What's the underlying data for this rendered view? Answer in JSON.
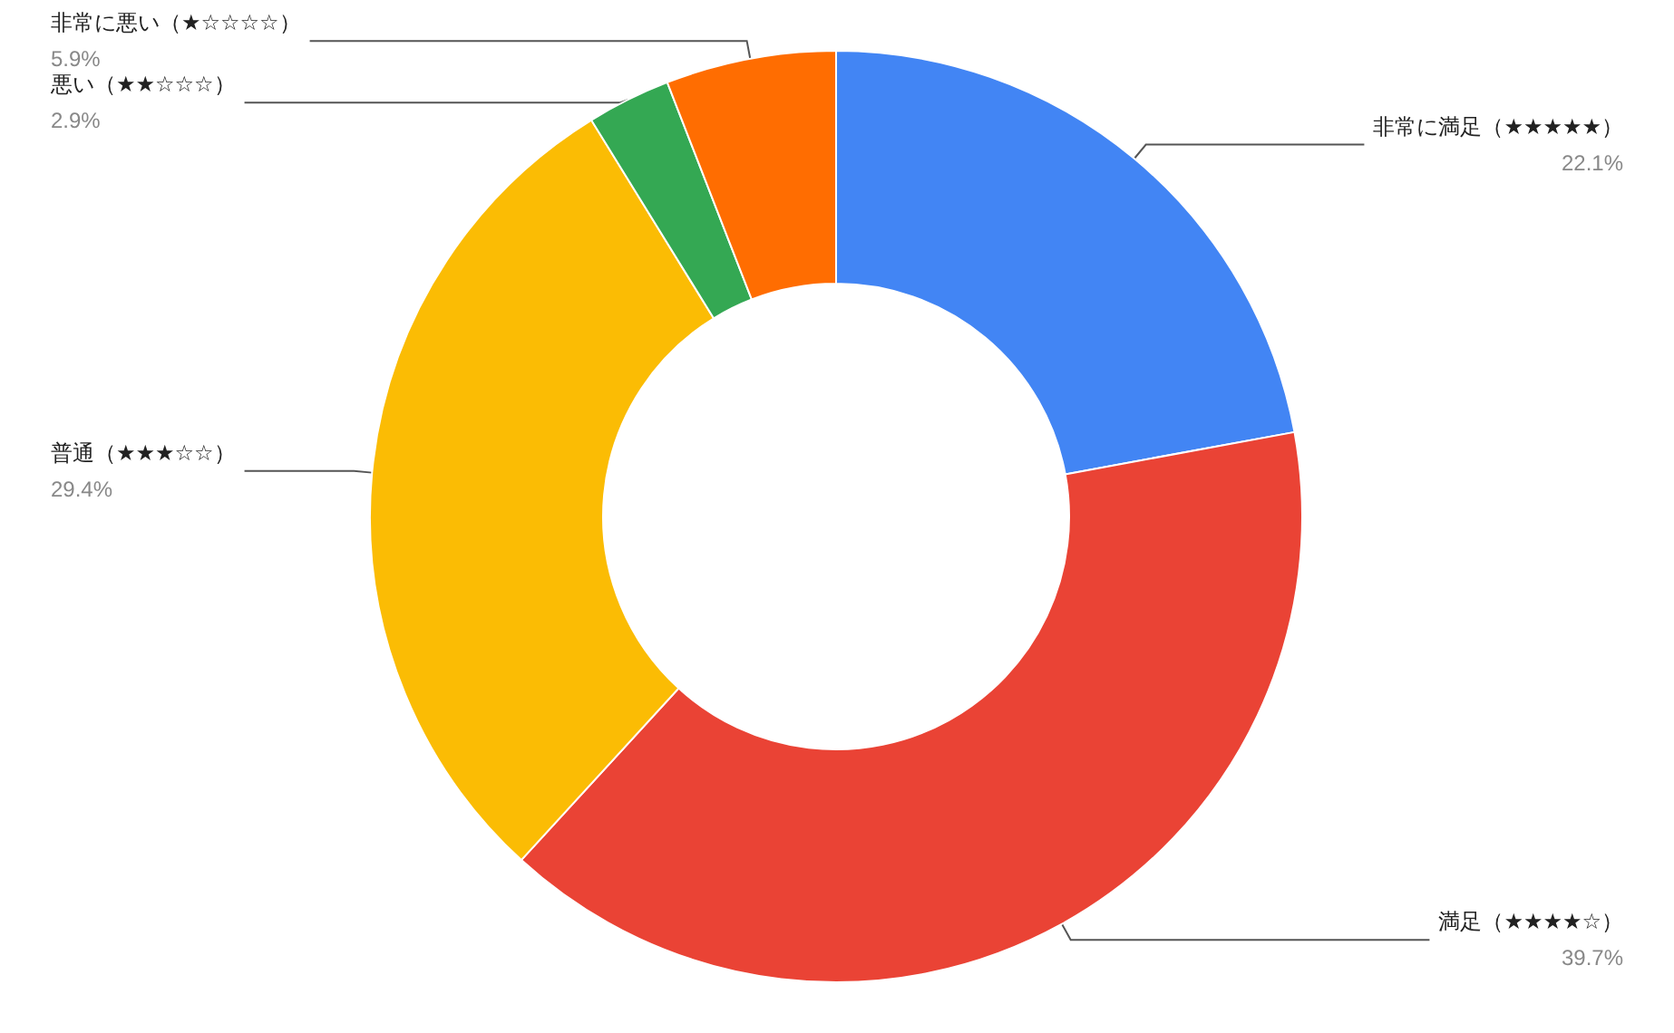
{
  "chart_data": {
    "type": "donut",
    "categories": [
      "非常に満足（★★★★★）",
      "満足（★★★★☆）",
      "普通（★★★☆☆）",
      "悪い（★★☆☆☆）",
      "非常に悪い（★☆☆☆☆）"
    ],
    "values": [
      22.1,
      39.7,
      29.4,
      2.9,
      5.9
    ],
    "value_labels": [
      "22.1%",
      "39.7%",
      "29.4%",
      "2.9%",
      "5.9%"
    ],
    "colors": [
      "#4285f4",
      "#ea4335",
      "#fbbc04",
      "#34a853",
      "#ff6d01"
    ],
    "legend": false
  }
}
